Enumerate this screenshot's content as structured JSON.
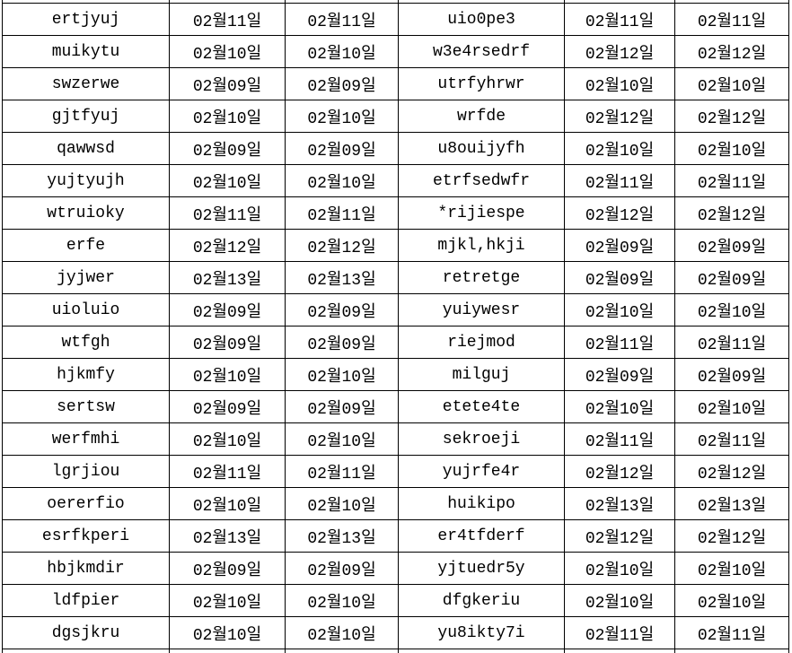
{
  "table": {
    "columns": [
      {
        "key": "name_left",
        "type": "text"
      },
      {
        "key": "date_left_a",
        "type": "date"
      },
      {
        "key": "date_left_b",
        "type": "date"
      },
      {
        "key": "name_right",
        "type": "text"
      },
      {
        "key": "date_right_a",
        "type": "date"
      },
      {
        "key": "date_right_b",
        "type": "date"
      }
    ],
    "rows": [
      [
        "ertjyuj",
        "02월11일",
        "02월11일",
        "uio0pe3",
        "02월11일",
        "02월11일"
      ],
      [
        "muikytu",
        "02월10일",
        "02월10일",
        "w3e4rsedrf",
        "02월12일",
        "02월12일"
      ],
      [
        "swzerwe",
        "02월09일",
        "02월09일",
        "utrfyhrwr",
        "02월10일",
        "02월10일"
      ],
      [
        "gjtfyuj",
        "02월10일",
        "02월10일",
        "wrfde",
        "02월12일",
        "02월12일"
      ],
      [
        "qawwsd",
        "02월09일",
        "02월09일",
        "u8ouijyfh",
        "02월10일",
        "02월10일"
      ],
      [
        "yujtyujh",
        "02월10일",
        "02월10일",
        "etrfsedwfr",
        "02월11일",
        "02월11일"
      ],
      [
        "wtruioky",
        "02월11일",
        "02월11일",
        "*rijiespe",
        "02월12일",
        "02월12일"
      ],
      [
        "erfe",
        "02월12일",
        "02월12일",
        "mjkl,hkji",
        "02월09일",
        "02월09일"
      ],
      [
        "jyjwer",
        "02월13일",
        "02월13일",
        "retretge",
        "02월09일",
        "02월09일"
      ],
      [
        "uioluio",
        "02월09일",
        "02월09일",
        "yuiywesr",
        "02월10일",
        "02월10일"
      ],
      [
        "wtfgh",
        "02월09일",
        "02월09일",
        "riejmod",
        "02월11일",
        "02월11일"
      ],
      [
        "hjkmfy",
        "02월10일",
        "02월10일",
        "milguj",
        "02월09일",
        "02월09일"
      ],
      [
        "sertsw",
        "02월09일",
        "02월09일",
        "etete4te",
        "02월10일",
        "02월10일"
      ],
      [
        "werfmhi",
        "02월10일",
        "02월10일",
        "sekroeji",
        "02월11일",
        "02월11일"
      ],
      [
        "lgrjiou",
        "02월11일",
        "02월11일",
        "yujrfe4r",
        "02월12일",
        "02월12일"
      ],
      [
        "oererfio",
        "02월10일",
        "02월10일",
        "huikipo",
        "02월13일",
        "02월13일"
      ],
      [
        "esrfkperi",
        "02월13일",
        "02월13일",
        "er4tfderf",
        "02월12일",
        "02월12일"
      ],
      [
        "hbjkmdir",
        "02월09일",
        "02월09일",
        "yjtuedr5y",
        "02월10일",
        "02월10일"
      ],
      [
        "ldfpier",
        "02월10일",
        "02월10일",
        "dfgkeriu",
        "02월10일",
        "02월10일"
      ],
      [
        "dgsjkru",
        "02월10일",
        "02월10일",
        "yu8ikty7i",
        "02월11일",
        "02월11일"
      ]
    ]
  },
  "styles": {
    "grid_border_color": "#000000",
    "text_color": "#000000",
    "background_color": "#ffffff"
  }
}
